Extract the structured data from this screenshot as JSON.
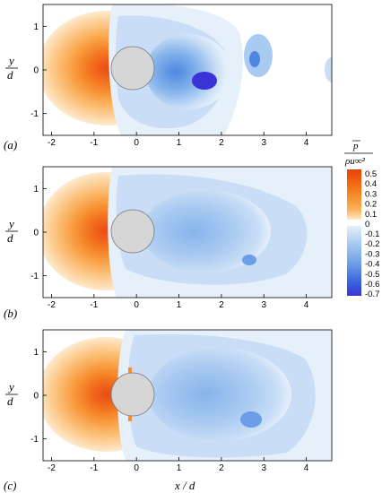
{
  "figure": {
    "panels": [
      {
        "label": "(a)"
      },
      {
        "label": "(b)"
      },
      {
        "label": "(c)"
      }
    ],
    "ylabel_num": "y",
    "ylabel_den": "d",
    "xlabel": "x / d",
    "x_ticks": [
      "-2",
      "-1",
      "0",
      "1",
      "2",
      "3",
      "4"
    ],
    "y_ticks": [
      "1",
      "0",
      "-1"
    ],
    "colorbar": {
      "title_num": "p",
      "title_den": "ρu∞²",
      "positive_levels": [
        "0.5",
        "0.4",
        "0.3",
        "0.2",
        "0.1"
      ],
      "zero_label": "0",
      "negative_levels": [
        "-0.1",
        "-0.2",
        "-0.3",
        "-0.4",
        "-0.5",
        "-0.6",
        "-0.7"
      ],
      "positive_colors": [
        "#e8420a",
        "#f26a12",
        "#f7902c",
        "#fab25e",
        "#fcd19a",
        "#fde9cc"
      ],
      "negative_colors": [
        "#e6f0fb",
        "#c9def6",
        "#a9caf1",
        "#86b4eb",
        "#6a9ee7",
        "#4f86e2",
        "#3b63e0",
        "#3a34d6"
      ]
    }
  },
  "chart_data": {
    "type": "heatmap",
    "description_units": "mean pressure coefficient contour, x/d vs y/d",
    "xlim": [
      -2,
      4.6
    ],
    "ylim": [
      -1.5,
      1.5
    ],
    "colorbar_range": [
      -0.7,
      0.5
    ],
    "panels": [
      "(a)",
      "(b)",
      "(c)"
    ]
  }
}
